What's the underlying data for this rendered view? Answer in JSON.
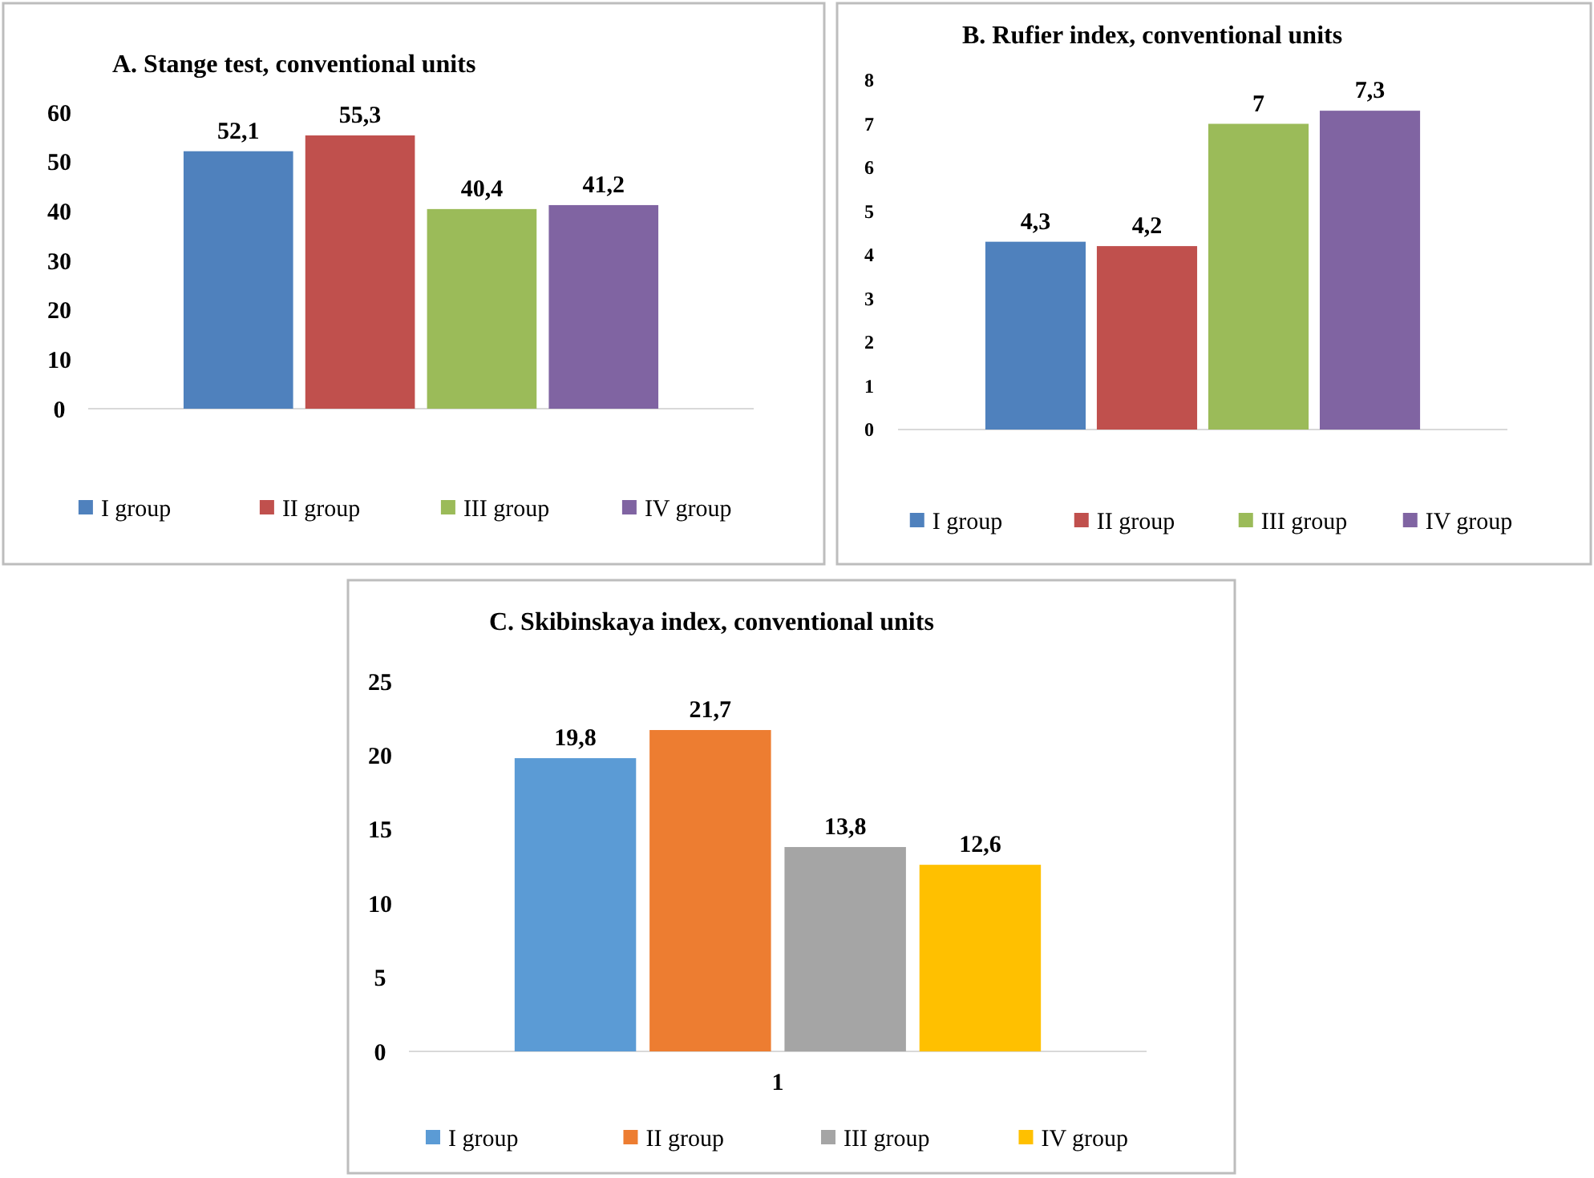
{
  "chart_data": [
    {
      "type": "bar",
      "title": "A. Stange test, conventional units",
      "categories": [
        null
      ],
      "ylim": [
        0,
        60
      ],
      "yticks": [
        0,
        10,
        20,
        30,
        40,
        50,
        60
      ],
      "grid": false,
      "legend": "bottom",
      "series": [
        {
          "name": "I group",
          "color": "#4f81bd",
          "values": [
            52.1
          ],
          "value_labels": [
            "52,1"
          ]
        },
        {
          "name": "II group",
          "color": "#c0504d",
          "values": [
            55.3
          ],
          "value_labels": [
            "55,3"
          ]
        },
        {
          "name": "III group",
          "color": "#9bbb59",
          "values": [
            40.4
          ],
          "value_labels": [
            "40,4"
          ]
        },
        {
          "name": "IV group",
          "color": "#8064a2",
          "values": [
            41.2
          ],
          "value_labels": [
            "41,2"
          ]
        }
      ]
    },
    {
      "type": "bar",
      "title": "B. Rufier index, conventional units",
      "categories": [
        null
      ],
      "ylim": [
        0,
        8
      ],
      "yticks": [
        0,
        1,
        2,
        3,
        4,
        5,
        6,
        7,
        8
      ],
      "grid": false,
      "legend": "bottom",
      "series": [
        {
          "name": "I group",
          "color": "#4f81bd",
          "values": [
            4.3
          ],
          "value_labels": [
            "4,3"
          ]
        },
        {
          "name": "II group",
          "color": "#c0504d",
          "values": [
            4.2
          ],
          "value_labels": [
            "4,2"
          ]
        },
        {
          "name": "III group",
          "color": "#9bbb59",
          "values": [
            7
          ],
          "value_labels": [
            "7"
          ]
        },
        {
          "name": "IV group",
          "color": "#8064a2",
          "values": [
            7.3
          ],
          "value_labels": [
            "7,3"
          ]
        }
      ]
    },
    {
      "type": "bar",
      "title": "C. Skibinskaya index, conventional units",
      "categories": [
        "1"
      ],
      "ylim": [
        0,
        25
      ],
      "yticks": [
        0,
        5,
        10,
        15,
        20,
        25
      ],
      "grid": false,
      "legend": "bottom",
      "series": [
        {
          "name": "I group",
          "color": "#5b9bd5",
          "values": [
            19.8
          ],
          "value_labels": [
            "19,8"
          ]
        },
        {
          "name": "II group",
          "color": "#ed7d31",
          "values": [
            21.7
          ],
          "value_labels": [
            "21,7"
          ]
        },
        {
          "name": "III group",
          "color": "#a5a5a5",
          "values": [
            13.8
          ],
          "value_labels": [
            "13,8"
          ]
        },
        {
          "name": "IV group",
          "color": "#ffc000",
          "values": [
            12.6
          ],
          "value_labels": [
            "12,6"
          ]
        }
      ]
    }
  ]
}
